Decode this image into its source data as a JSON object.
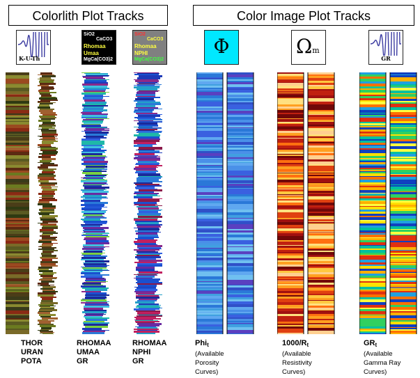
{
  "headers": {
    "colorlith": "Colorlith Plot Tracks",
    "color_image": "Color Image Plot Tracks"
  },
  "icons": {
    "kuth": {
      "text": "K-U-Th"
    },
    "rhomaa_umaa": {
      "lines": [
        "SiO2",
        "CaCO3",
        "Rhomaa",
        "Umaa",
        "MgCa(CO3)2"
      ]
    },
    "rhomaa_nphi": {
      "lines": [
        "SiO2",
        "CaCO3",
        "Rhomaa",
        "NPHI",
        "MgCa(CO3)2"
      ]
    },
    "phi": {
      "symbol": "Φ"
    },
    "omega": {
      "symbol": "Ω",
      "subscript": "m"
    },
    "gr": {
      "text": "GR"
    }
  },
  "labels": {
    "kuth": [
      "THOR",
      "URAN",
      "POTA"
    ],
    "rhomaa_umaa": [
      "RHOMAA",
      "UMAA",
      "GR"
    ],
    "rhomaa_nphi": [
      "RHOMAA",
      "NPHI",
      "GR"
    ],
    "phi": {
      "main": "Phi",
      "sub": "t",
      "notes": [
        "(Available",
        "Porosity",
        "Curves)"
      ]
    },
    "resistivity": {
      "main": "1000/R",
      "sub": "t",
      "notes": [
        "(Available",
        "Resistivity",
        "Curves)"
      ]
    },
    "gamma": {
      "main": "GR",
      "sub": "t",
      "notes": [
        "(Available",
        "Gamma Ray",
        "Curves)"
      ]
    }
  },
  "colors": {
    "colorlith_kuth": [
      "#3a3a1a",
      "#5a5a22",
      "#6b7a20",
      "#8a8a30",
      "#4a3d18",
      "#2f3a12",
      "#7a6a28",
      "#9a4a20",
      "#5c2a12",
      "#8a2a14",
      "#a06030"
    ],
    "colorlith_rhomaa": [
      "#1e3ab8",
      "#1a50d0",
      "#2a7ad8",
      "#24a0c8",
      "#1fb8a8",
      "#3060e0",
      "#6a2aa0",
      "#8a2a8a",
      "#1a2a9a",
      "#40c0e0",
      "#7ad040"
    ],
    "phi": [
      "#3a60e0",
      "#4a90e8",
      "#2a78d8",
      "#60a8f0",
      "#3050c8",
      "#5a40c0",
      "#70c0f0",
      "#40a0e0"
    ],
    "resistivity": [
      "#ffe080",
      "#ffc840",
      "#ffa020",
      "#ff7010",
      "#e04010",
      "#a01010",
      "#700808",
      "#ffd090",
      "#c02010"
    ],
    "gamma": [
      "#ffe000",
      "#ffb000",
      "#ff7000",
      "#30d060",
      "#00c0a0",
      "#ffff40",
      "#e03010",
      "#20a0e0",
      "#1040c0"
    ]
  }
}
